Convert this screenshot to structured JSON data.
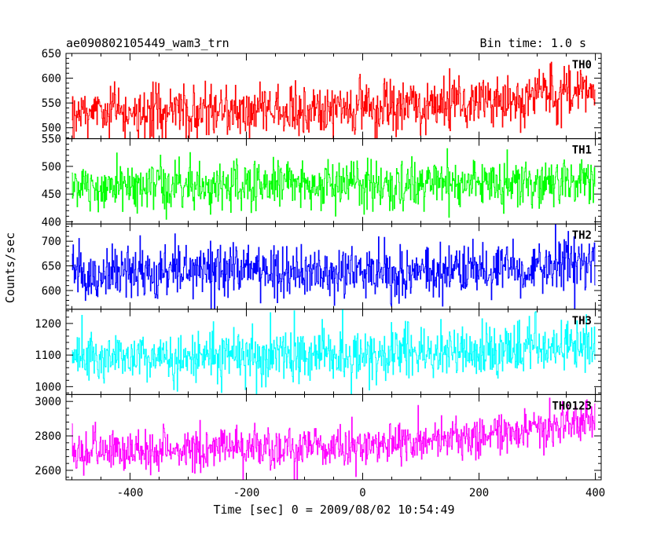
{
  "header": {
    "left": "ae090802105449_wam3_trn",
    "right": "Bin time: 1.0 s"
  },
  "chart_data": {
    "type": "line",
    "title": "ae090802105449_wam3_trn",
    "subtitle": "Bin time: 1.0 s",
    "xlabel": "Time [sec] 0 = 2009/08/02 10:54:49",
    "ylabel": "Counts/sec",
    "xlim": [
      -510,
      410
    ],
    "x_ticks": [
      -400,
      -200,
      0,
      200,
      400
    ],
    "x_range": [
      -500,
      400
    ],
    "bin_time": 1.0,
    "grid": false,
    "panels": [
      {
        "name": "TH0",
        "color": "#ff0000",
        "ylim": [
          478,
          650
        ],
        "y_ticks": [
          500,
          550,
          600,
          650
        ],
        "trend": [
          [
            -500,
            532
          ],
          [
            -250,
            534
          ],
          [
            0,
            540
          ],
          [
            200,
            553
          ],
          [
            400,
            572
          ]
        ],
        "noise": 26
      },
      {
        "name": "TH1",
        "color": "#00ff00",
        "ylim": [
          396,
          550
        ],
        "y_ticks": [
          400,
          450,
          500,
          550
        ],
        "trend": [
          [
            -500,
            465
          ],
          [
            -250,
            465
          ],
          [
            0,
            466
          ],
          [
            200,
            469
          ],
          [
            400,
            475
          ]
        ],
        "noise": 22
      },
      {
        "name": "TH2",
        "color": "#0000ff",
        "ylim": [
          562,
          735
        ],
        "y_ticks": [
          600,
          650,
          700
        ],
        "trend": [
          [
            -500,
            638
          ],
          [
            -250,
            640
          ],
          [
            0,
            635
          ],
          [
            200,
            638
          ],
          [
            400,
            655
          ]
        ],
        "noise": 27
      },
      {
        "name": "TH3",
        "color": "#00ffff",
        "ylim": [
          975,
          1245
        ],
        "y_ticks": [
          1000,
          1100,
          1200
        ],
        "trend": [
          [
            -500,
            1090
          ],
          [
            -250,
            1095
          ],
          [
            0,
            1098
          ],
          [
            200,
            1110
          ],
          [
            400,
            1140
          ]
        ],
        "noise": 40
      },
      {
        "name": "TH0123",
        "color": "#ff00ff",
        "ylim": [
          2545,
          3040
        ],
        "y_ticks": [
          2600,
          2800,
          3000
        ],
        "trend": [
          [
            -500,
            2710
          ],
          [
            -250,
            2725
          ],
          [
            0,
            2740
          ],
          [
            200,
            2790
          ],
          [
            300,
            2840
          ],
          [
            400,
            2900
          ]
        ],
        "noise": 62
      }
    ]
  }
}
